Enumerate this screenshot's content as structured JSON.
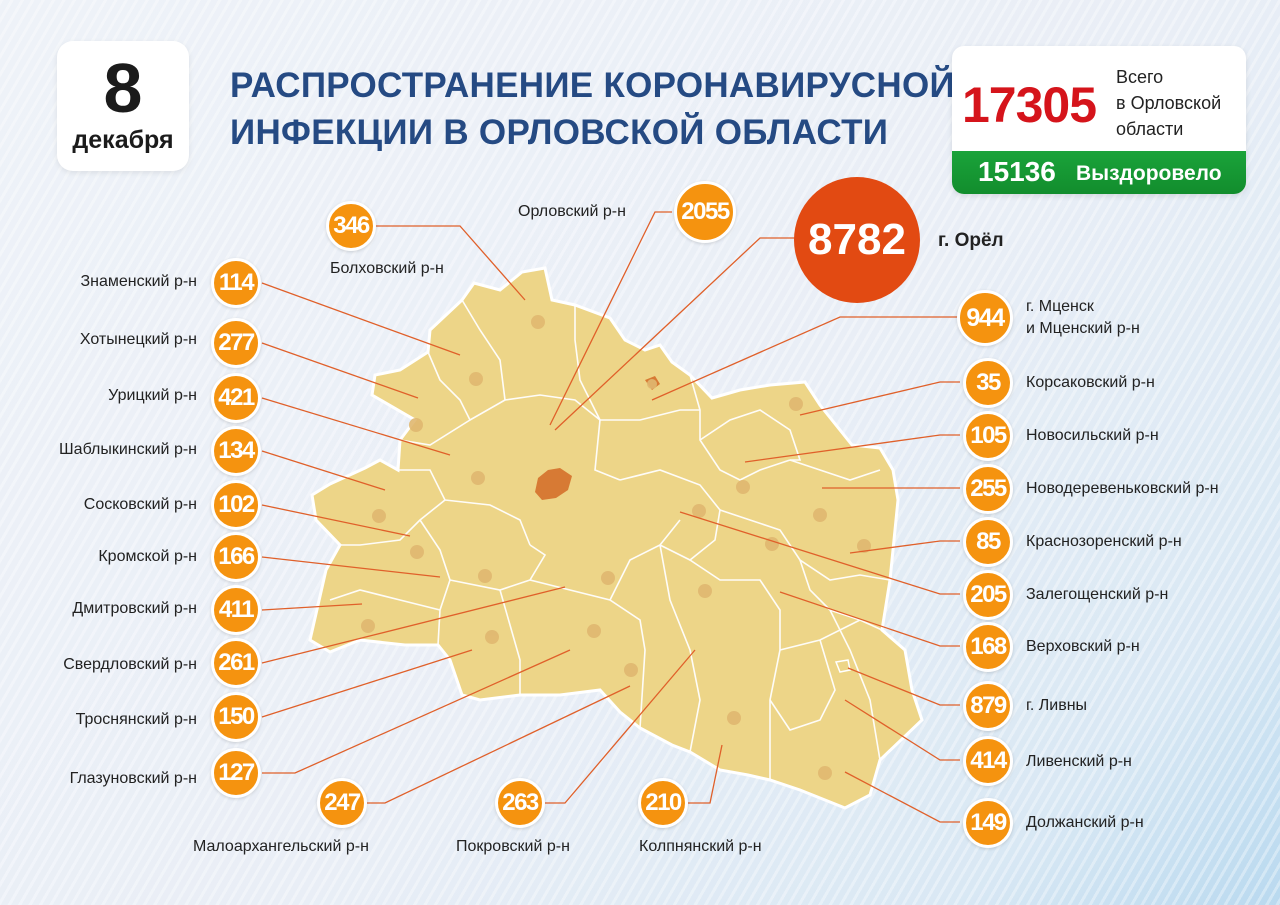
{
  "date": {
    "day": "8",
    "month": "декабря"
  },
  "title": {
    "line1": "РАСПРОСТРАНЕНИЕ КОРОНАВИРУСНОЙ",
    "line2": "ИНФЕКЦИИ В ОРЛОВСКОЙ ОБЛАСТИ"
  },
  "summary": {
    "total": "17305",
    "total_label_1": "Всего",
    "total_label_2": "в Орловской",
    "total_label_3": "области",
    "recovered": "15136",
    "recovered_label": "Выздоровело"
  },
  "city": {
    "value": "8782",
    "label": "г. Орёл"
  },
  "left_districts": [
    {
      "name": "Знаменский р-н",
      "value": "114"
    },
    {
      "name": "Хотынецкий р-н",
      "value": "277"
    },
    {
      "name": "Урицкий р-н",
      "value": "421"
    },
    {
      "name": "Шаблыкинский р-н",
      "value": "134"
    },
    {
      "name": "Сосковский р-н",
      "value": "102"
    },
    {
      "name": "Кромской р-н",
      "value": "166"
    },
    {
      "name": "Дмитровский р-н",
      "value": "411"
    },
    {
      "name": "Свердловский р-н",
      "value": "261"
    },
    {
      "name": "Троснянский р-н",
      "value": "150"
    },
    {
      "name": "Глазуновский р-н",
      "value": "127"
    }
  ],
  "right_districts": [
    {
      "name_1": "г. Мценск",
      "name_2": "и Мценский р-н",
      "value": "944"
    },
    {
      "name_1": "Корсаковский р-н",
      "name_2": "",
      "value": "35"
    },
    {
      "name_1": "Новосильский р-н",
      "name_2": "",
      "value": "105"
    },
    {
      "name_1": "Новодеревеньковский р-н",
      "name_2": "",
      "value": "255"
    },
    {
      "name_1": "Краснозоренский р-н",
      "name_2": "",
      "value": "85"
    },
    {
      "name_1": "Залегощенский р-н",
      "name_2": "",
      "value": "205"
    },
    {
      "name_1": "Верховский р-н",
      "name_2": "",
      "value": "168"
    },
    {
      "name_1": "г. Ливны",
      "name_2": "",
      "value": "879"
    },
    {
      "name_1": "Ливенский р-н",
      "name_2": "",
      "value": "414"
    },
    {
      "name_1": "Должанский р-н",
      "name_2": "",
      "value": "149"
    }
  ],
  "top_districts": [
    {
      "name": "Болховский р-н",
      "value": "346"
    },
    {
      "name": "Орловский р-н",
      "value": "2055"
    }
  ],
  "bottom_districts": [
    {
      "name": "Малоархангельский р-н",
      "value": "247"
    },
    {
      "name": "Покровский р-н",
      "value": "263"
    },
    {
      "name": "Колпнянский р-н",
      "value": "210"
    }
  ],
  "colors": {
    "badge": "#f5930f",
    "city_badge": "#e24a12",
    "map_fill": "#edd588",
    "title": "#254a83",
    "total": "#d5141b",
    "recovered_bar": "#16993a",
    "leader_line": "#e0602a"
  }
}
